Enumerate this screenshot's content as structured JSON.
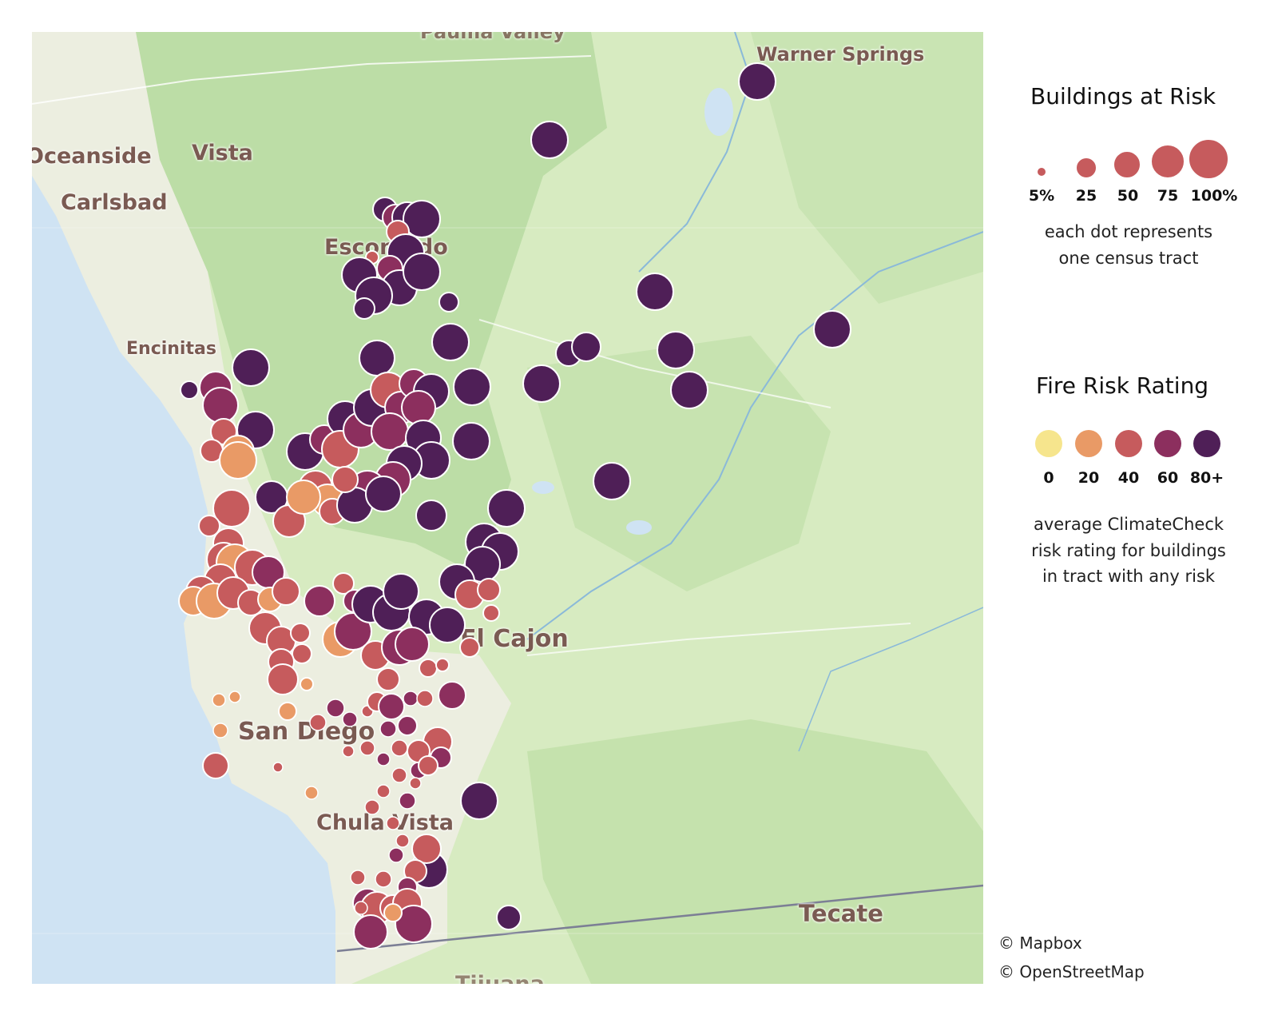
{
  "map": {
    "places": [
      {
        "name": "Warner Springs"
      },
      {
        "name": "Oceanside"
      },
      {
        "name": "Vista"
      },
      {
        "name": "Carlsbad"
      },
      {
        "name": "Escondido"
      },
      {
        "name": "Encinitas"
      },
      {
        "name": "El Cajon"
      },
      {
        "name": "San Diego"
      },
      {
        "name": "Chula Vista"
      },
      {
        "name": "Tecate"
      },
      {
        "name": "Pauma Valley"
      },
      {
        "name": "Tijuana"
      }
    ],
    "colors": {
      "land": "#d7ebc1",
      "forest": "#b9dca0",
      "urban": "#ecefe2",
      "water": "#cfe3f3",
      "risk_0": "#f6e58d",
      "risk_20": "#e99a66",
      "risk_40": "#c65b5d",
      "risk_60": "#8c2f5e",
      "risk_80": "#4f1f57"
    }
  },
  "legend": {
    "size": {
      "title": "Buildings at Risk",
      "items": [
        {
          "label": "5%",
          "value": 5
        },
        {
          "label": "25",
          "value": 25
        },
        {
          "label": "50",
          "value": 50
        },
        {
          "label": "75",
          "value": 75
        },
        {
          "label": "100%",
          "value": 100
        }
      ],
      "note_line1": "each dot represents",
      "note_line2": "one census tract"
    },
    "color": {
      "title": "Fire Risk Rating",
      "items": [
        {
          "label": "0",
          "value": 0,
          "color": "#f6e58d"
        },
        {
          "label": "20",
          "value": 20,
          "color": "#e99a66"
        },
        {
          "label": "40",
          "value": 40,
          "color": "#c65b5d"
        },
        {
          "label": "60",
          "value": 60,
          "color": "#8c2f5e"
        },
        {
          "label": "80+",
          "value": 80,
          "color": "#4f1f57"
        }
      ],
      "note_line1": "average ClimateCheck",
      "note_line2": "risk rating for buildings",
      "note_line3": "in tract with any risk"
    }
  },
  "attribution": {
    "mapbox": "© Mapbox",
    "osm": "© OpenStreetMap"
  }
}
